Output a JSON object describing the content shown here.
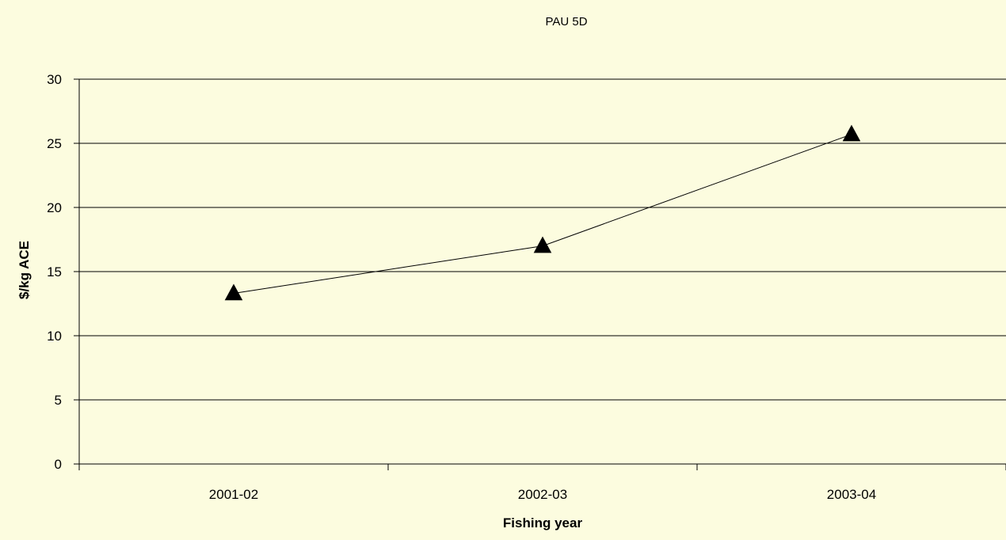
{
  "chart_data": {
    "type": "line",
    "title": "PAU 5D",
    "xlabel": "Fishing year",
    "ylabel": "$/kg ACE",
    "categories": [
      "2001-02",
      "2002-03",
      "2003-04"
    ],
    "series": [
      {
        "values": [
          13.3,
          17.0,
          25.7
        ],
        "marker": "triangle",
        "color": "#000000"
      }
    ],
    "ylim": [
      0,
      30
    ],
    "yticks": [
      0,
      5,
      10,
      15,
      20,
      25,
      30
    ],
    "grid": "horizontal",
    "background": "#fcfcdf"
  }
}
